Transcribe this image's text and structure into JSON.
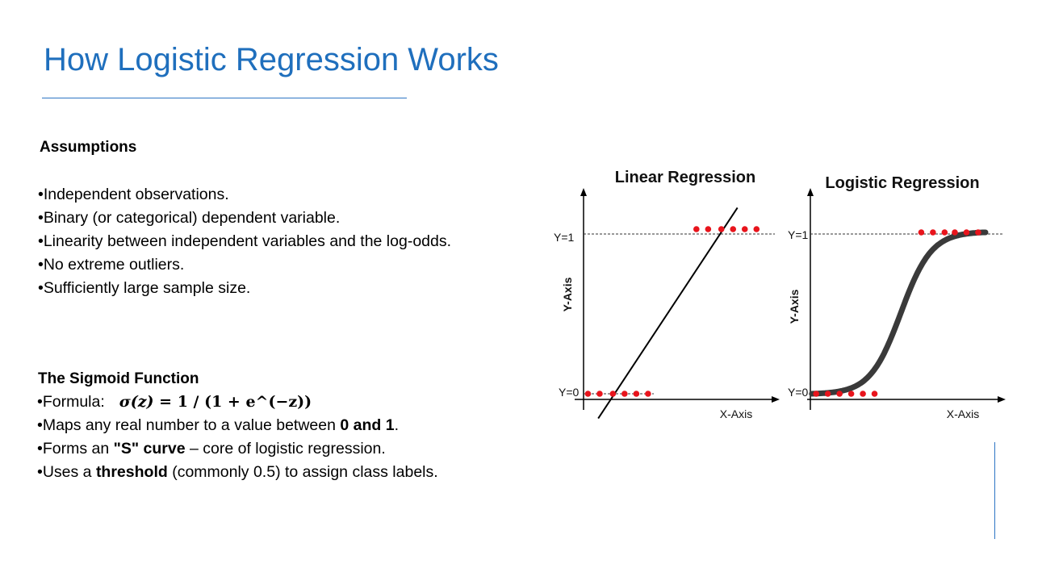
{
  "slide": {
    "title": "How Logistic Regression Works"
  },
  "assumptions": {
    "heading": "Assumptions",
    "items": [
      "Independent observations.",
      "Binary (or categorical) dependent variable.",
      "Linearity between independent variables and the log-odds.",
      "No extreme outliers.",
      "Sufficiently large sample size."
    ]
  },
  "sigmoid": {
    "heading": "The Sigmoid Function",
    "formula_label": "Formula:",
    "formula_lhs": "σ(z)",
    "formula_eq": " = ",
    "formula_rhs": "1 / (1 + e^(−z))",
    "maps_pre": "Maps any real number to a value between ",
    "maps_bold": "0 and 1",
    "maps_post": ".",
    "forms_pre": "Forms an ",
    "forms_bold": "\"S\" curve",
    "forms_post": " – core of logistic regression.",
    "uses_pre": "Uses a ",
    "uses_bold": "threshold",
    "uses_post": " (commonly 0.5) to assign class labels."
  },
  "bullet_char": "•",
  "chart_data": [
    {
      "type": "scatter",
      "title": "Linear Regression",
      "xlabel": "X-Axis",
      "ylabel": "Y-Axis",
      "y_tick_labels": [
        "Y=0",
        "Y=1"
      ],
      "ylim": [
        0,
        1
      ],
      "points_y0_x": [
        0.3,
        1.1,
        2.0,
        2.8,
        3.6,
        4.4
      ],
      "points_y1_x": [
        7.7,
        8.5,
        9.4,
        10.2,
        11.0,
        11.8
      ],
      "line": {
        "x0": 1.0,
        "y0": -0.15,
        "x1": 10.5,
        "y1": 1.13
      },
      "xlim": [
        0,
        12.5
      ],
      "reference_lines": [
        0,
        1
      ],
      "colors": {
        "points": "#e8141c",
        "line": "#000000"
      }
    },
    {
      "type": "scatter",
      "title": "Logistic Regression",
      "xlabel": "X-Axis",
      "ylabel": "Y-Axis",
      "y_tick_labels": [
        "Y=0",
        "Y=1"
      ],
      "ylim": [
        0,
        1
      ],
      "points_y0_x": [
        0.4,
        1.2,
        2.0,
        2.8,
        3.6,
        4.4
      ],
      "points_y1_x": [
        7.6,
        8.4,
        9.2,
        9.9,
        10.7,
        11.5
      ],
      "curve": "sigmoid",
      "xlim": [
        0,
        12.5
      ],
      "reference_lines": [
        1
      ],
      "colors": {
        "points": "#e8141c",
        "curve": "#3a3a3a"
      }
    }
  ]
}
